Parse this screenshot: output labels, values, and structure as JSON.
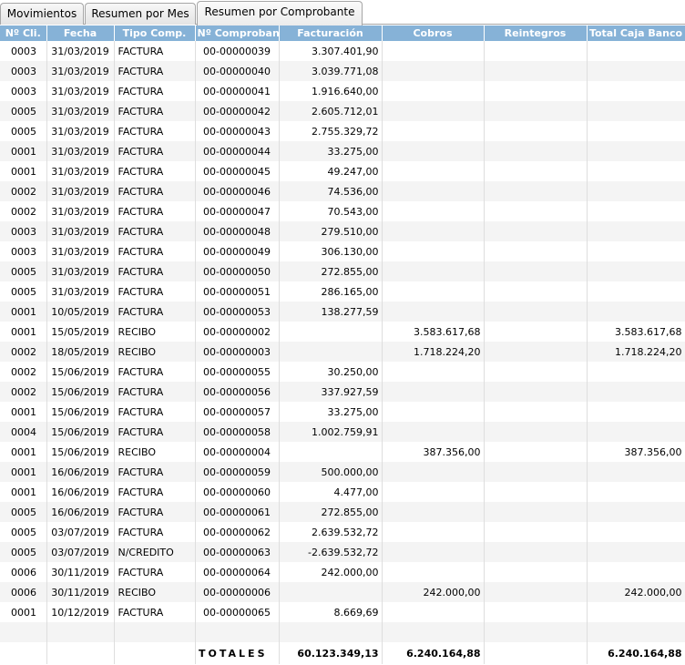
{
  "tabs": [
    {
      "label": "Movimientos"
    },
    {
      "label": "Resumen por Mes"
    },
    {
      "label": "Resumen por Comprobante"
    }
  ],
  "columns": [
    "Nº Cli.",
    "Fecha",
    "Tipo Comp.",
    "Nº Comprobante",
    "Facturación",
    "Cobros",
    "Reintegros",
    "Total Caja Banco"
  ],
  "rows": [
    {
      "cli": "0003",
      "fecha": "31/03/2019",
      "tipo": "FACTURA",
      "comp": "00-00000039",
      "facturacion": "3.307.401,90",
      "cobros": "",
      "reintegros": "",
      "total": ""
    },
    {
      "cli": "0003",
      "fecha": "31/03/2019",
      "tipo": "FACTURA",
      "comp": "00-00000040",
      "facturacion": "3.039.771,08",
      "cobros": "",
      "reintegros": "",
      "total": ""
    },
    {
      "cli": "0003",
      "fecha": "31/03/2019",
      "tipo": "FACTURA",
      "comp": "00-00000041",
      "facturacion": "1.916.640,00",
      "cobros": "",
      "reintegros": "",
      "total": ""
    },
    {
      "cli": "0005",
      "fecha": "31/03/2019",
      "tipo": "FACTURA",
      "comp": "00-00000042",
      "facturacion": "2.605.712,01",
      "cobros": "",
      "reintegros": "",
      "total": ""
    },
    {
      "cli": "0005",
      "fecha": "31/03/2019",
      "tipo": "FACTURA",
      "comp": "00-00000043",
      "facturacion": "2.755.329,72",
      "cobros": "",
      "reintegros": "",
      "total": ""
    },
    {
      "cli": "0001",
      "fecha": "31/03/2019",
      "tipo": "FACTURA",
      "comp": "00-00000044",
      "facturacion": "33.275,00",
      "cobros": "",
      "reintegros": "",
      "total": ""
    },
    {
      "cli": "0001",
      "fecha": "31/03/2019",
      "tipo": "FACTURA",
      "comp": "00-00000045",
      "facturacion": "49.247,00",
      "cobros": "",
      "reintegros": "",
      "total": ""
    },
    {
      "cli": "0002",
      "fecha": "31/03/2019",
      "tipo": "FACTURA",
      "comp": "00-00000046",
      "facturacion": "74.536,00",
      "cobros": "",
      "reintegros": "",
      "total": ""
    },
    {
      "cli": "0002",
      "fecha": "31/03/2019",
      "tipo": "FACTURA",
      "comp": "00-00000047",
      "facturacion": "70.543,00",
      "cobros": "",
      "reintegros": "",
      "total": ""
    },
    {
      "cli": "0003",
      "fecha": "31/03/2019",
      "tipo": "FACTURA",
      "comp": "00-00000048",
      "facturacion": "279.510,00",
      "cobros": "",
      "reintegros": "",
      "total": ""
    },
    {
      "cli": "0003",
      "fecha": "31/03/2019",
      "tipo": "FACTURA",
      "comp": "00-00000049",
      "facturacion": "306.130,00",
      "cobros": "",
      "reintegros": "",
      "total": ""
    },
    {
      "cli": "0005",
      "fecha": "31/03/2019",
      "tipo": "FACTURA",
      "comp": "00-00000050",
      "facturacion": "272.855,00",
      "cobros": "",
      "reintegros": "",
      "total": ""
    },
    {
      "cli": "0005",
      "fecha": "31/03/2019",
      "tipo": "FACTURA",
      "comp": "00-00000051",
      "facturacion": "286.165,00",
      "cobros": "",
      "reintegros": "",
      "total": ""
    },
    {
      "cli": "0001",
      "fecha": "10/05/2019",
      "tipo": "FACTURA",
      "comp": "00-00000053",
      "facturacion": "138.277,59",
      "cobros": "",
      "reintegros": "",
      "total": ""
    },
    {
      "cli": "0001",
      "fecha": "15/05/2019",
      "tipo": "RECIBO",
      "comp": "00-00000002",
      "facturacion": "",
      "cobros": "3.583.617,68",
      "reintegros": "",
      "total": "3.583.617,68"
    },
    {
      "cli": "0002",
      "fecha": "18/05/2019",
      "tipo": "RECIBO",
      "comp": "00-00000003",
      "facturacion": "",
      "cobros": "1.718.224,20",
      "reintegros": "",
      "total": "1.718.224,20"
    },
    {
      "cli": "0002",
      "fecha": "15/06/2019",
      "tipo": "FACTURA",
      "comp": "00-00000055",
      "facturacion": "30.250,00",
      "cobros": "",
      "reintegros": "",
      "total": ""
    },
    {
      "cli": "0002",
      "fecha": "15/06/2019",
      "tipo": "FACTURA",
      "comp": "00-00000056",
      "facturacion": "337.927,59",
      "cobros": "",
      "reintegros": "",
      "total": ""
    },
    {
      "cli": "0001",
      "fecha": "15/06/2019",
      "tipo": "FACTURA",
      "comp": "00-00000057",
      "facturacion": "33.275,00",
      "cobros": "",
      "reintegros": "",
      "total": ""
    },
    {
      "cli": "0004",
      "fecha": "15/06/2019",
      "tipo": "FACTURA",
      "comp": "00-00000058",
      "facturacion": "1.002.759,91",
      "cobros": "",
      "reintegros": "",
      "total": ""
    },
    {
      "cli": "0001",
      "fecha": "15/06/2019",
      "tipo": "RECIBO",
      "comp": "00-00000004",
      "facturacion": "",
      "cobros": "387.356,00",
      "reintegros": "",
      "total": "387.356,00"
    },
    {
      "cli": "0001",
      "fecha": "16/06/2019",
      "tipo": "FACTURA",
      "comp": "00-00000059",
      "facturacion": "500.000,00",
      "cobros": "",
      "reintegros": "",
      "total": ""
    },
    {
      "cli": "0001",
      "fecha": "16/06/2019",
      "tipo": "FACTURA",
      "comp": "00-00000060",
      "facturacion": "4.477,00",
      "cobros": "",
      "reintegros": "",
      "total": ""
    },
    {
      "cli": "0005",
      "fecha": "16/06/2019",
      "tipo": "FACTURA",
      "comp": "00-00000061",
      "facturacion": "272.855,00",
      "cobros": "",
      "reintegros": "",
      "total": ""
    },
    {
      "cli": "0005",
      "fecha": "03/07/2019",
      "tipo": "FACTURA",
      "comp": "00-00000062",
      "facturacion": "2.639.532,72",
      "cobros": "",
      "reintegros": "",
      "total": ""
    },
    {
      "cli": "0005",
      "fecha": "03/07/2019",
      "tipo": "N/CREDITO",
      "comp": "00-00000063",
      "facturacion": "-2.639.532,72",
      "cobros": "",
      "reintegros": "",
      "total": ""
    },
    {
      "cli": "0006",
      "fecha": "30/11/2019",
      "tipo": "FACTURA",
      "comp": "00-00000064",
      "facturacion": "242.000,00",
      "cobros": "",
      "reintegros": "",
      "total": ""
    },
    {
      "cli": "0006",
      "fecha": "30/11/2019",
      "tipo": "RECIBO",
      "comp": "00-00000006",
      "facturacion": "",
      "cobros": "242.000,00",
      "reintegros": "",
      "total": "242.000,00"
    },
    {
      "cli": "0001",
      "fecha": "10/12/2019",
      "tipo": "FACTURA",
      "comp": "00-00000065",
      "facturacion": "8.669,69",
      "cobros": "",
      "reintegros": "",
      "total": ""
    },
    {
      "cli": "",
      "fecha": "",
      "tipo": "",
      "comp": "",
      "facturacion": "",
      "cobros": "",
      "reintegros": "",
      "total": ""
    }
  ],
  "totals": {
    "label": "TOTALES",
    "facturacion": "60.123.349,13",
    "cobros": "6.240.164,88",
    "reintegros": "",
    "total": "6.240.164,88"
  },
  "colors": {
    "header_bg": "#86b2d7",
    "header_text": "#ffffff",
    "row_alt": "#f4f4f4"
  }
}
